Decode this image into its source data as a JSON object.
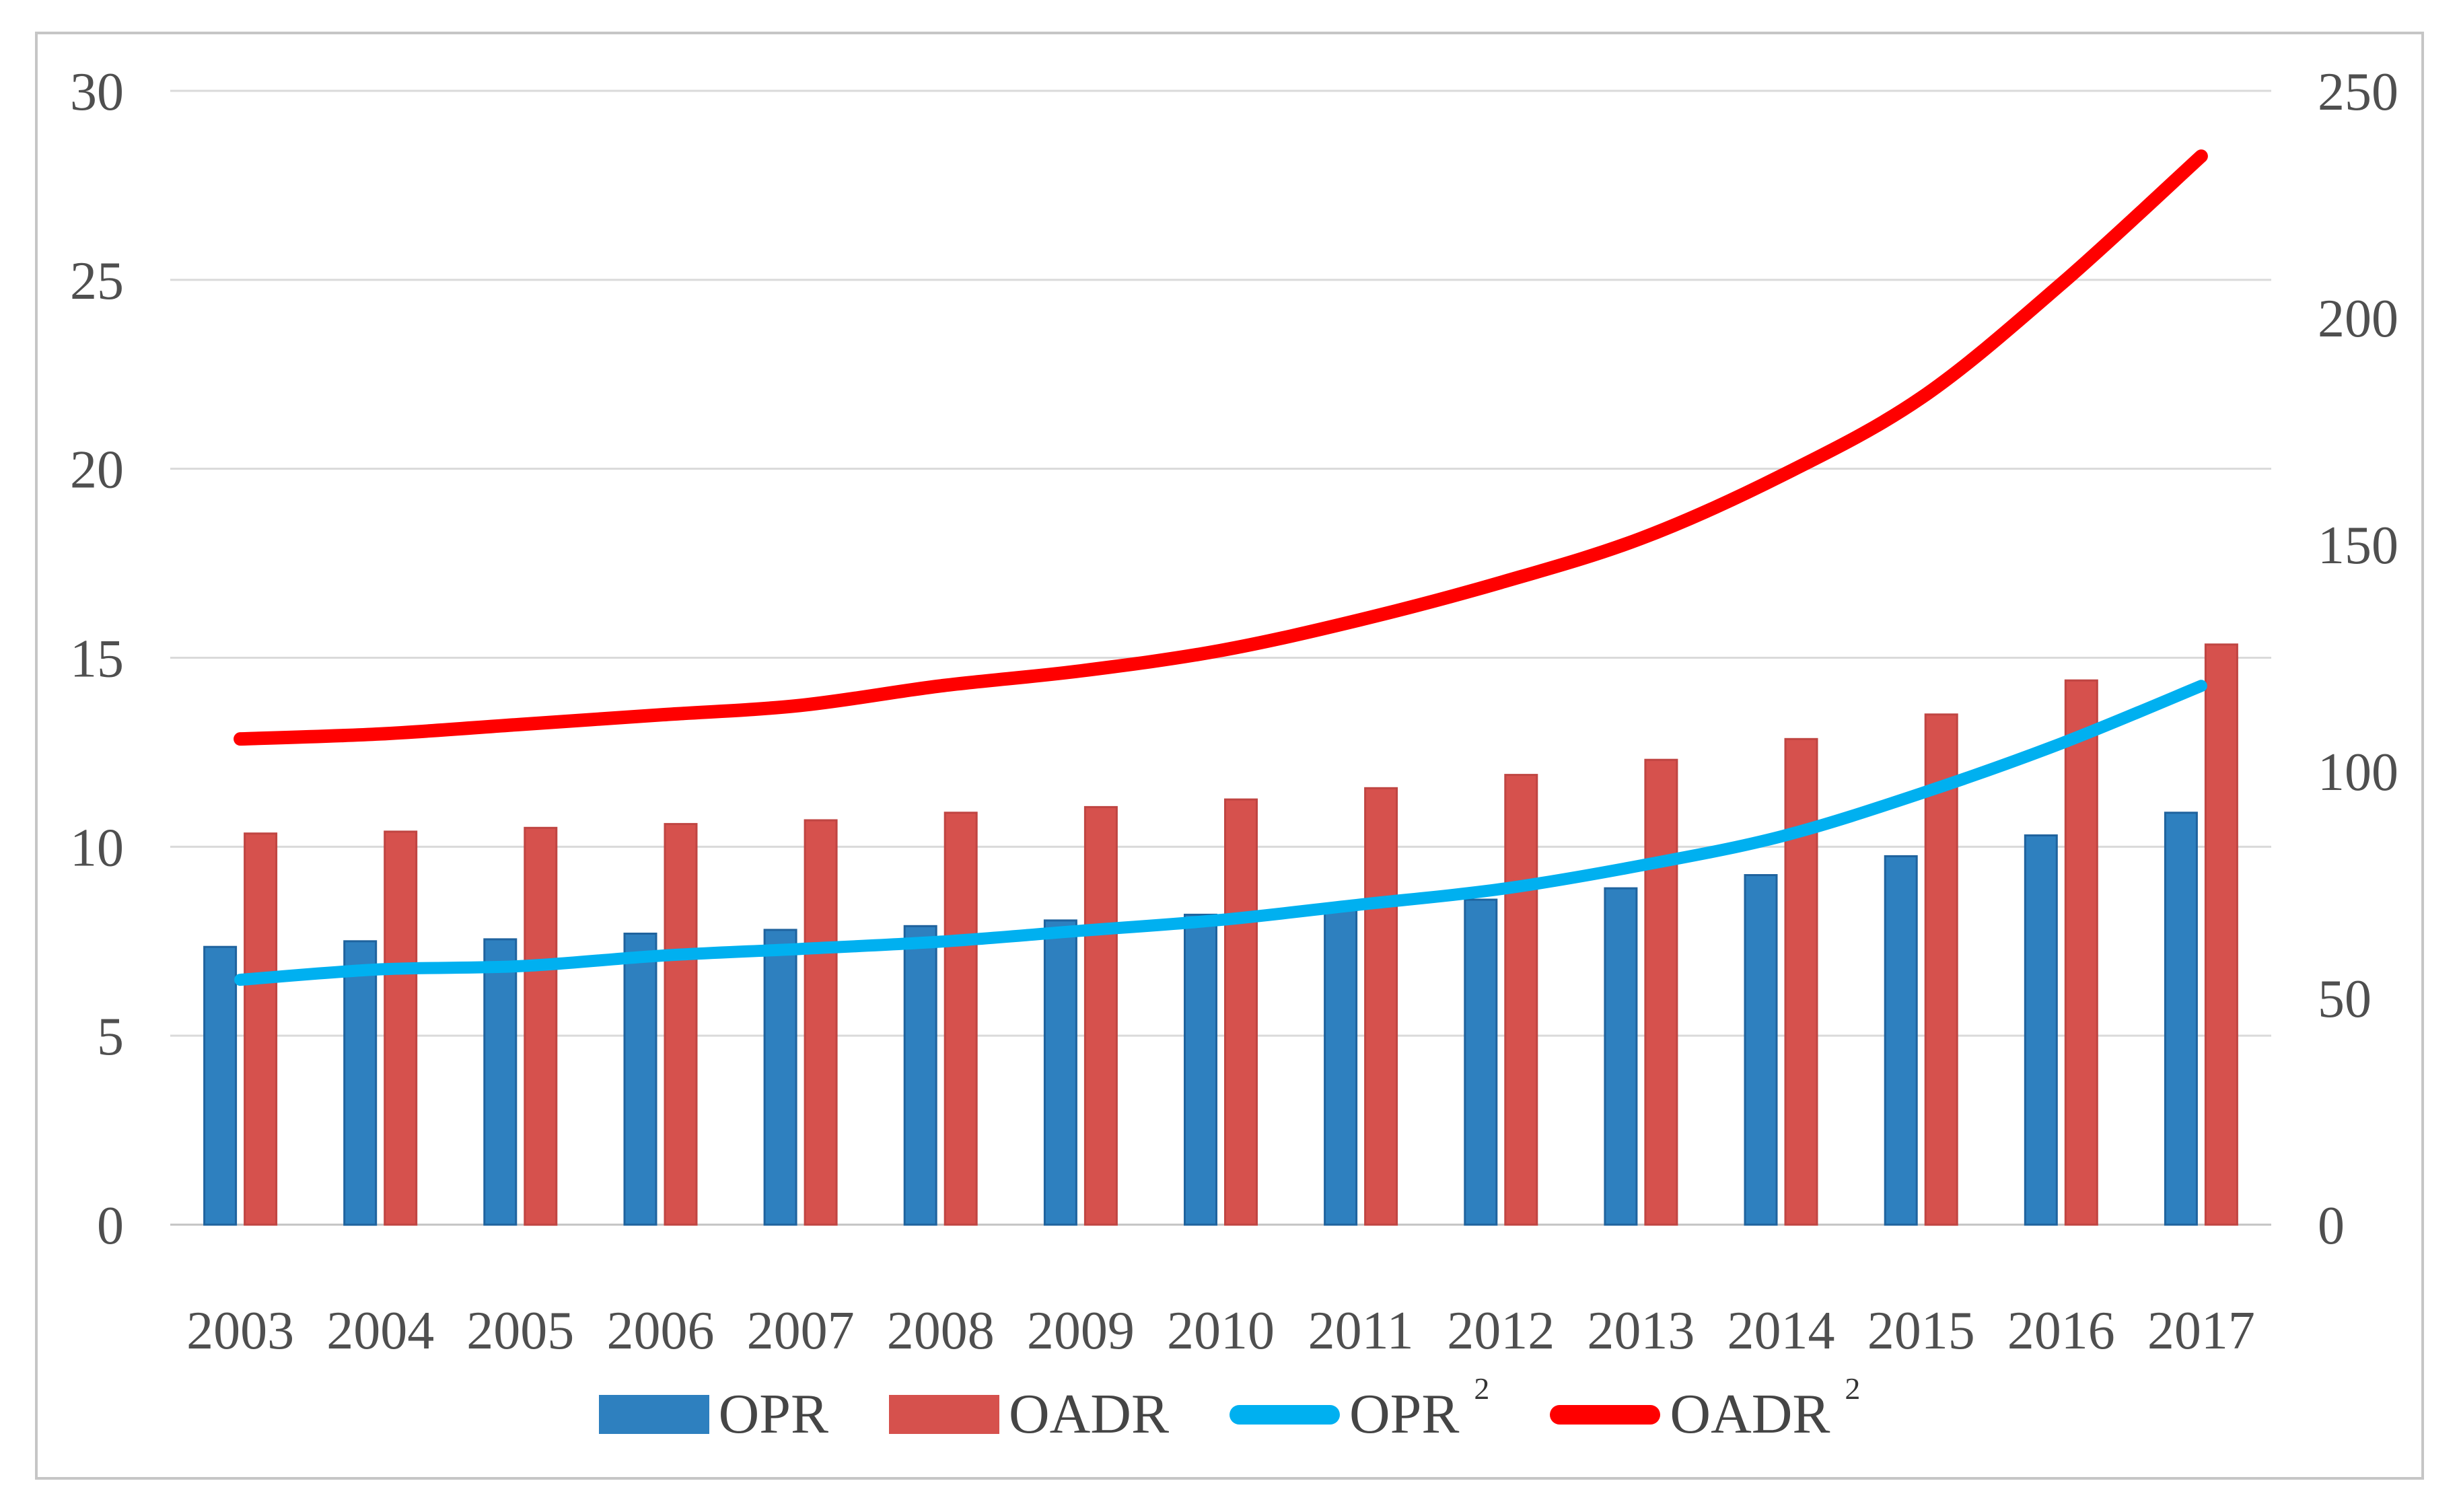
{
  "figure": {
    "background": "#ffffff",
    "border_color": "#c6c6c6"
  },
  "chart_data": {
    "type": "combo-bar-line",
    "title": "",
    "xlabel": "",
    "ylabel_left": "",
    "ylabel_right": "",
    "categories": [
      "2003",
      "2004",
      "2005",
      "2006",
      "2007",
      "2008",
      "2009",
      "2010",
      "2011",
      "2012",
      "2013",
      "2014",
      "2015",
      "2016",
      "2017"
    ],
    "series": [
      {
        "name": "OPR",
        "type": "bar",
        "axis": "left",
        "color": "#2E80BF",
        "border_color": "#1F639E",
        "values": [
          7.35,
          7.5,
          7.55,
          7.7,
          7.8,
          7.9,
          8.05,
          8.2,
          8.4,
          8.6,
          8.9,
          9.25,
          9.75,
          10.3,
          10.9
        ]
      },
      {
        "name": "OADR",
        "type": "bar",
        "axis": "left",
        "color": "#D6514D",
        "border_color": "#C04542",
        "values": [
          10.35,
          10.4,
          10.5,
          10.6,
          10.7,
          10.9,
          11.05,
          11.25,
          11.55,
          11.9,
          12.3,
          12.85,
          13.5,
          14.4,
          15.35
        ]
      },
      {
        "name": "OPR 2",
        "type": "line",
        "axis": "right",
        "color": "#00B0F0",
        "values": [
          54.0,
          56.3,
          57.0,
          59.3,
          60.8,
          62.4,
          64.8,
          67.2,
          70.6,
          74.0,
          79.2,
          85.6,
          95.1,
          106.1,
          118.8
        ]
      },
      {
        "name": "OADR 2",
        "type": "line",
        "axis": "right",
        "color": "#FF0000",
        "values": [
          107.1,
          108.2,
          110.3,
          112.4,
          114.5,
          118.8,
          122.1,
          126.6,
          133.4,
          141.6,
          151.3,
          165.1,
          182.3,
          207.4,
          235.6
        ]
      }
    ],
    "left_axis": {
      "min": 0,
      "max": 30,
      "step": 5,
      "ticks": [
        "0",
        "5",
        "10",
        "15",
        "20",
        "25",
        "30"
      ]
    },
    "right_axis": {
      "min": 0,
      "max": 250,
      "step": 50,
      "ticks": [
        "0",
        "50",
        "100",
        "150",
        "200",
        "250"
      ]
    },
    "grid": true,
    "gridlines": "horizontal",
    "gridline_color": "#DADADA",
    "axis_line_color": "#C3C3C3",
    "tick_label_color": "#4F4F4F",
    "legend_position": "bottom",
    "legend": [
      {
        "label": "OPR",
        "sup": "",
        "swatch": "bar",
        "color": "#2E80BF"
      },
      {
        "label": "OADR",
        "sup": "",
        "swatch": "bar",
        "color": "#D6514D"
      },
      {
        "label": "OPR",
        "sup": "2",
        "swatch": "line",
        "color": "#00B0F0"
      },
      {
        "label": "OADR",
        "sup": "2",
        "swatch": "line",
        "color": "#FF0000"
      }
    ]
  }
}
